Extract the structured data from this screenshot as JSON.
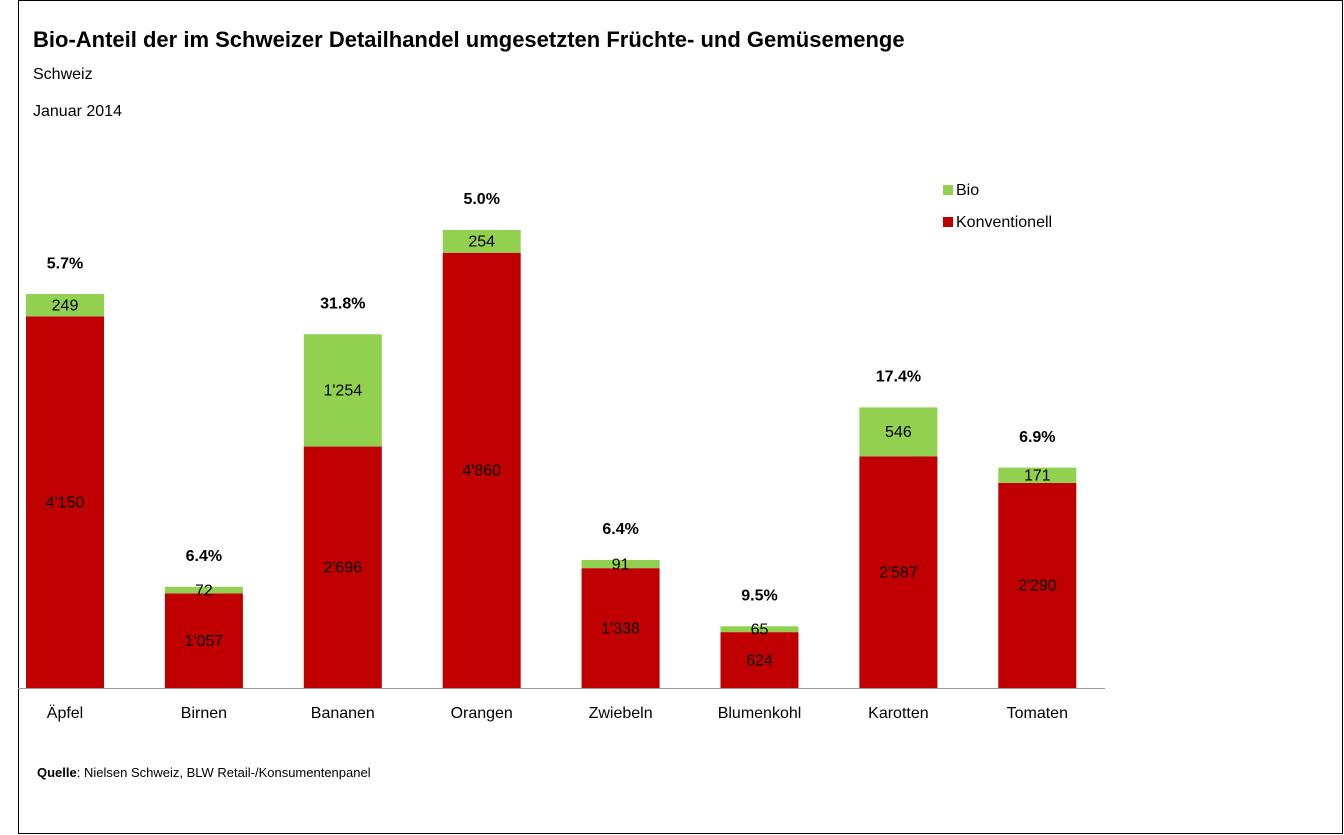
{
  "chart_data": {
    "type": "stacked_bar",
    "title": "Bio-Anteil der im Schweizer Detailhandel umgesetzten Früchte- und Gemüsemenge",
    "subtitle": "Schweiz",
    "period": "Januar 2014",
    "categories": [
      "Äpfel",
      "Birnen",
      "Bananen",
      "Orangen",
      "Zwiebeln",
      "Blumenkohl",
      "Karotten",
      "Tomaten"
    ],
    "series": [
      {
        "name": "Konventionell",
        "color": "#c00000",
        "values": [
          4150,
          1057,
          2696,
          4860,
          1338,
          624,
          2587,
          2290
        ],
        "value_labels": [
          "4'150",
          "1'057",
          "2'696",
          "4'860",
          "1'338",
          "624",
          "2'587",
          "2'290"
        ]
      },
      {
        "name": "Bio",
        "color": "#92d050",
        "values": [
          249,
          72,
          1254,
          254,
          91,
          65,
          546,
          171
        ],
        "value_labels": [
          "249",
          "72",
          "1'254",
          "254",
          "91",
          "65",
          "546",
          "171"
        ]
      }
    ],
    "share_labels": [
      "5.7%",
      "6.4%",
      "31.8%",
      "5.0%",
      "6.4%",
      "9.5%",
      "17.4%",
      "6.9%"
    ],
    "legend": "top-right",
    "source_label": "Quelle",
    "source_text": ": Nielsen Schweiz, BLW Retail-/Konsumentenpanel"
  }
}
